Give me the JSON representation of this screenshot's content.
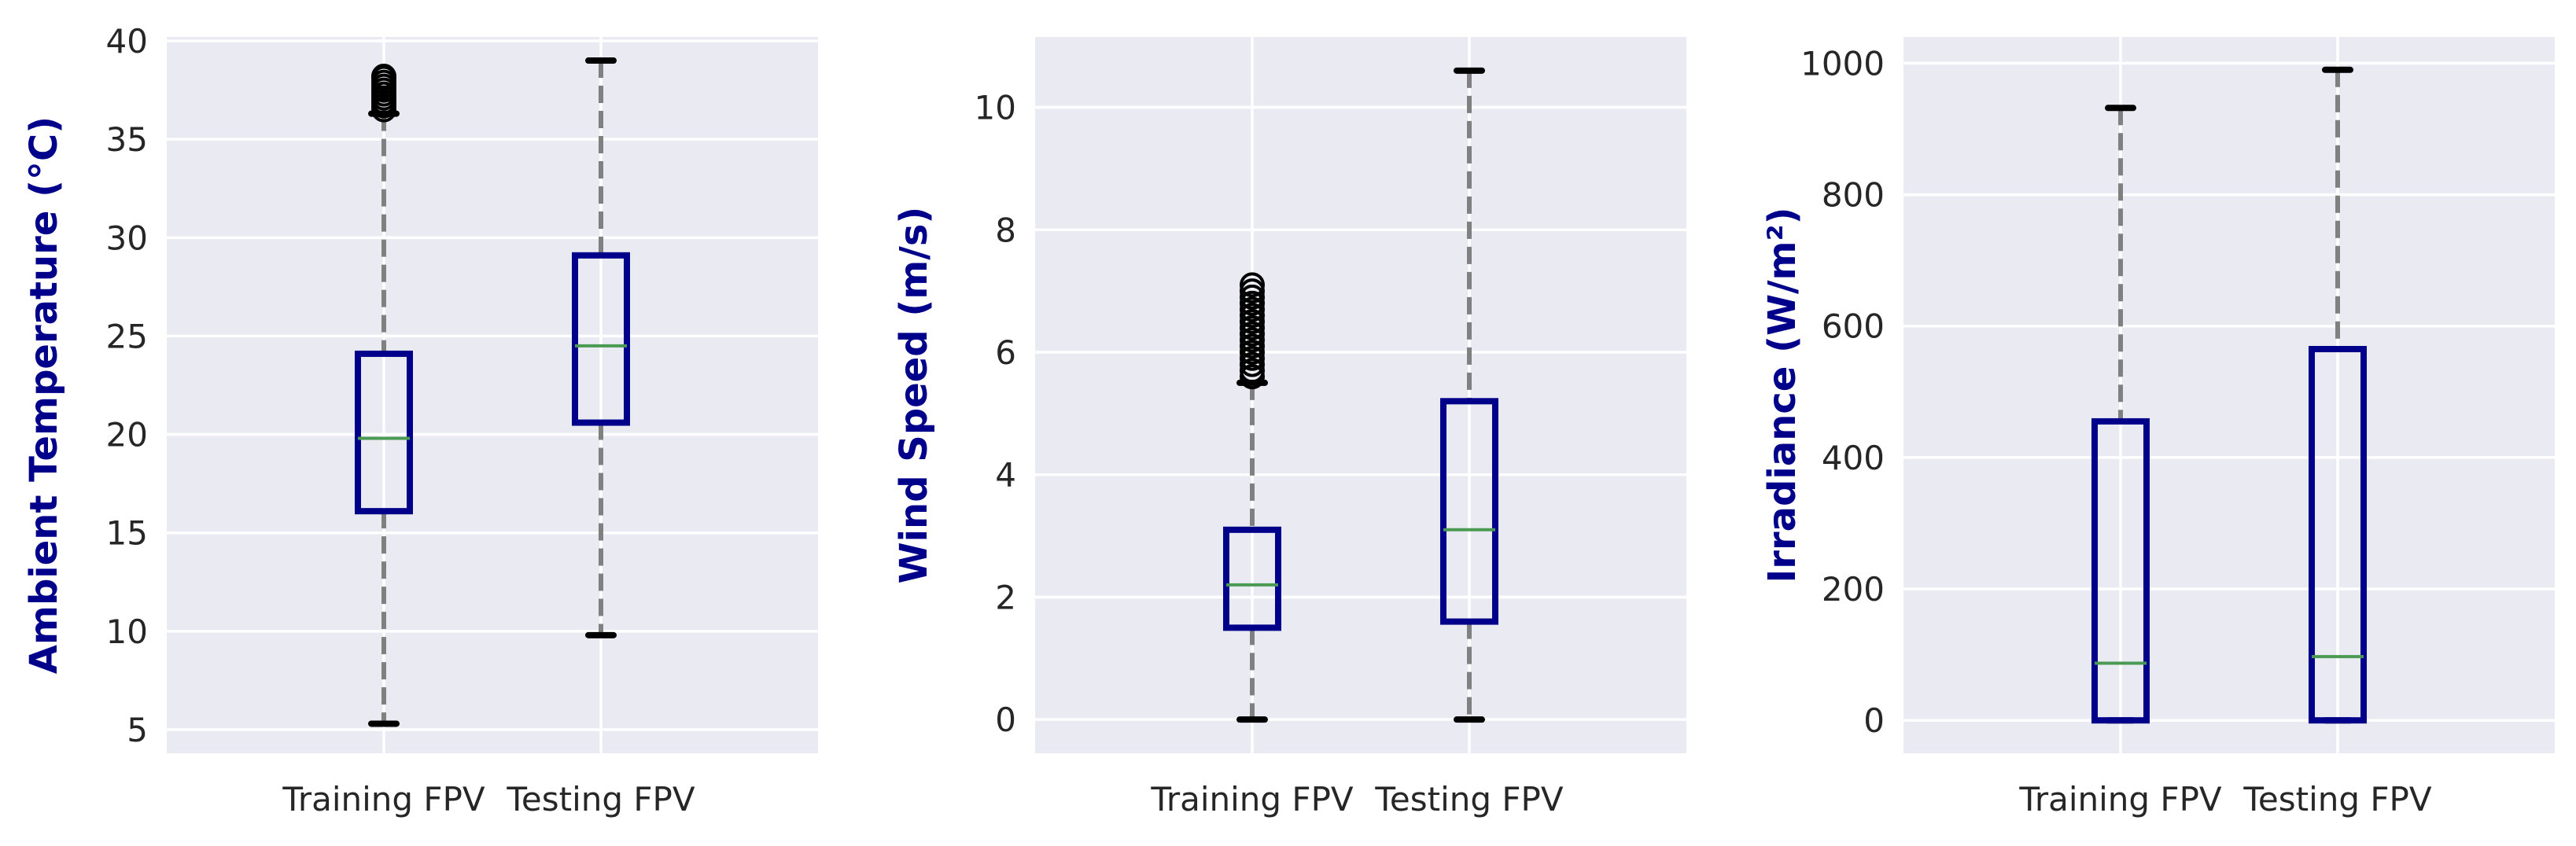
{
  "chart_data": [
    {
      "type": "box",
      "categories": [
        "Training FPV",
        "Testing FPV"
      ],
      "ylabel": "Ambient Temperature (°C)",
      "ylim": [
        3.8,
        40.2
      ],
      "yticks": [
        5,
        10,
        15,
        20,
        25,
        30,
        35,
        40
      ],
      "ytick_labels": [
        "5",
        "10",
        "15",
        "20",
        "25",
        "30",
        "35",
        "40"
      ],
      "boxes": [
        {
          "whislo": 5.3,
          "q1": 16.1,
          "med": 19.8,
          "q3": 24.1,
          "whishi": 36.3,
          "fliers": [
            36.5,
            36.7,
            36.9,
            37.1,
            37.3,
            37.5,
            37.7,
            37.9,
            38.1,
            38.2
          ]
        },
        {
          "whislo": 9.8,
          "q1": 20.6,
          "med": 24.5,
          "q3": 29.1,
          "whishi": 39.0,
          "fliers": []
        }
      ]
    },
    {
      "type": "box",
      "categories": [
        "Training FPV",
        "Testing FPV"
      ],
      "ylabel": "Wind Speed (m/s)",
      "ylim": [
        -0.55,
        11.15
      ],
      "yticks": [
        0,
        2,
        4,
        6,
        8,
        10
      ],
      "ytick_labels": [
        "0",
        "2",
        "4",
        "6",
        "8",
        "10"
      ],
      "boxes": [
        {
          "whislo": 0.0,
          "q1": 1.5,
          "med": 2.2,
          "q3": 3.1,
          "whishi": 5.5,
          "fliers": [
            5.6,
            5.7,
            5.8,
            5.9,
            6.0,
            6.1,
            6.2,
            6.3,
            6.4,
            6.5,
            6.6,
            6.7,
            6.8,
            6.9,
            7.0,
            7.1
          ]
        },
        {
          "whislo": 0.0,
          "q1": 1.6,
          "med": 3.1,
          "q3": 5.2,
          "whishi": 10.6,
          "fliers": []
        }
      ]
    },
    {
      "type": "box",
      "categories": [
        "Training FPV",
        "Testing FPV"
      ],
      "ylabel": "Irradiance (W/m²)",
      "ylim": [
        -50,
        1040
      ],
      "yticks": [
        0,
        200,
        400,
        600,
        800,
        1000
      ],
      "ytick_labels": [
        "0",
        "200",
        "400",
        "600",
        "800",
        "1000"
      ],
      "boxes": [
        {
          "whislo": 0,
          "q1": 0,
          "med": 87,
          "q3": 455,
          "whishi": 932,
          "fliers": []
        },
        {
          "whislo": 0,
          "q1": 0,
          "med": 97,
          "q3": 565,
          "whishi": 990,
          "fliers": []
        }
      ]
    }
  ]
}
